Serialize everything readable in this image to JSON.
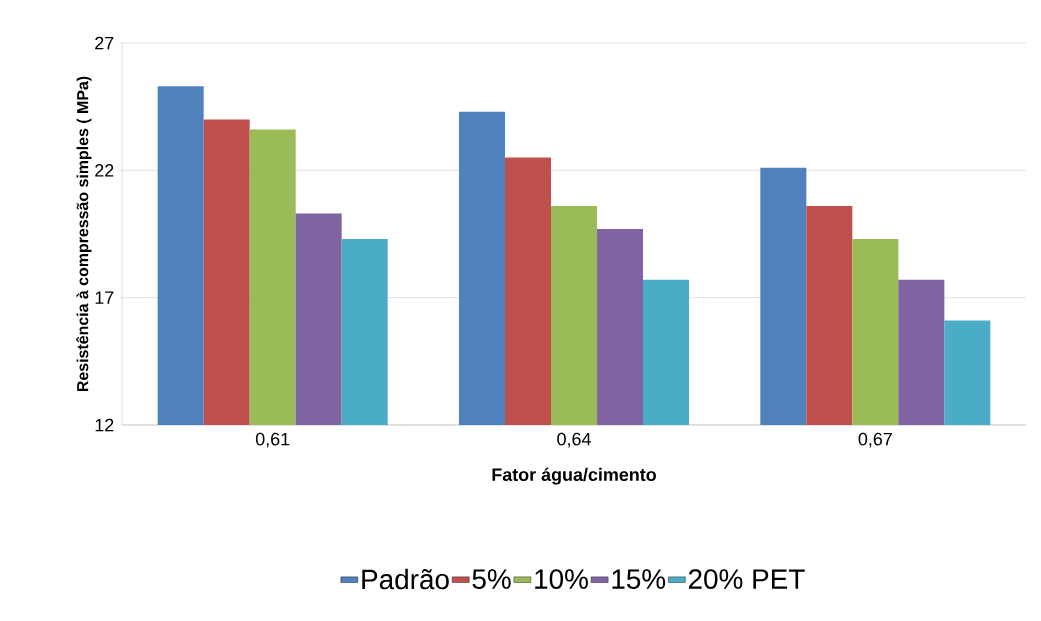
{
  "chart_data": {
    "type": "bar",
    "xlabel": "Fator água/cimento",
    "ylabel": "Resistência à compressão simples  ( MPa)",
    "categories": [
      "0,61",
      "0,64",
      "0,67"
    ],
    "series": [
      {
        "name": "Padrão",
        "color": "#4f81bd",
        "values": [
          25.3,
          24.3,
          22.1
        ]
      },
      {
        "name": "5%",
        "color": "#c0504d",
        "values": [
          24.0,
          22.5,
          20.6
        ]
      },
      {
        "name": "10%",
        "color": "#9bbb59",
        "values": [
          23.6,
          20.6,
          19.3
        ]
      },
      {
        "name": "15%",
        "color": "#8064a2",
        "values": [
          20.3,
          19.7,
          17.7
        ]
      },
      {
        "name": "20% PET",
        "color": "#4bacc6",
        "values": [
          19.3,
          17.7,
          16.1
        ]
      }
    ],
    "ylim": [
      12,
      27
    ],
    "yticks": [
      12,
      17,
      22,
      27
    ],
    "grid": "y",
    "legend": "bottom"
  }
}
